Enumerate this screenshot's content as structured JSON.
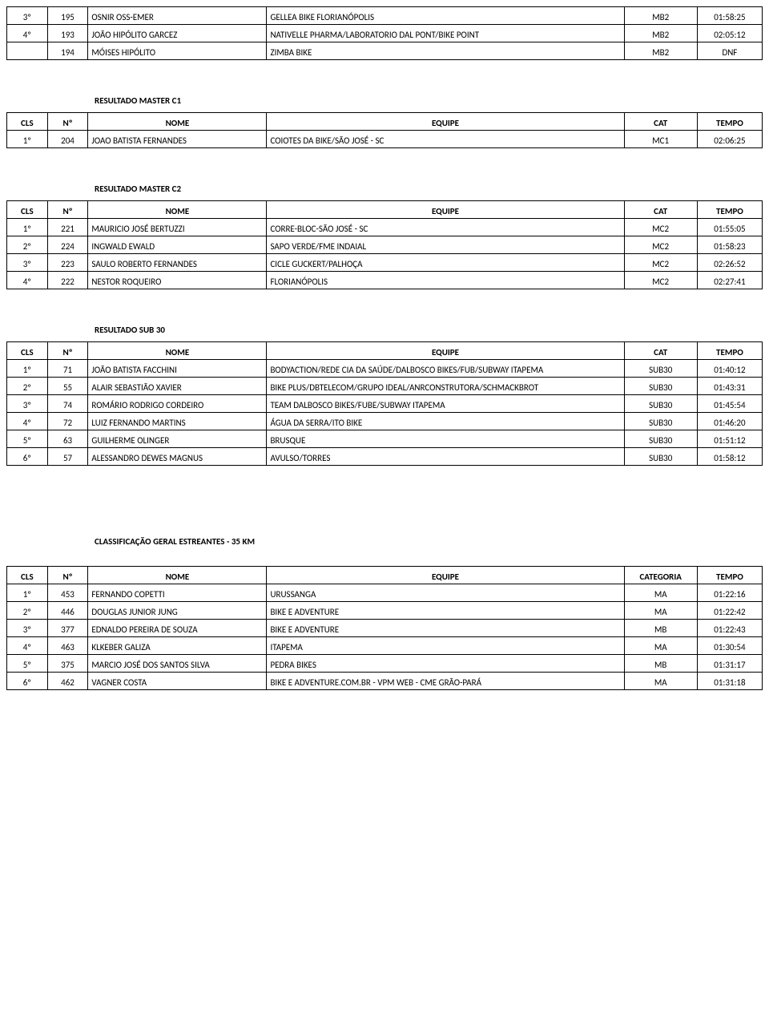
{
  "columns": {
    "cls": "CLS",
    "num": "Nº",
    "nome": "NOME",
    "equipe": "EQUIPE",
    "cat": "CAT",
    "categoria": "CATEGORIA",
    "tempo": "TEMPO"
  },
  "top_rows": [
    {
      "cls": "3º",
      "num": "195",
      "nome": "OSNIR OSS-EMER",
      "equipe": "GELLEA BIKE FLORIANÓPOLIS",
      "cat": "MB2",
      "tempo": "01:58:25"
    },
    {
      "cls": "4º",
      "num": "193",
      "nome": "JOÃO HIPÓLITO GARCEZ",
      "equipe": "NATIVELLE PHARMA/LABORATORIO DAL PONT/BIKE POINT",
      "cat": "MB2",
      "tempo": "02:05:12"
    },
    {
      "cls": "",
      "num": "194",
      "nome": "MÓISES HIPÓLITO",
      "equipe": "ZIMBA BIKE",
      "cat": "MB2",
      "tempo": "DNF"
    }
  ],
  "sections": [
    {
      "title": "RESULTADO MASTER C1",
      "cat_header": "CAT",
      "rows": [
        {
          "cls": "1º",
          "num": "204",
          "nome": "JOAO BATISTA FERNANDES",
          "equipe": "COIOTES DA BIKE/SÃO JOSÉ - SC",
          "cat": "MC1",
          "tempo": "02:06:25"
        }
      ]
    },
    {
      "title": "RESULTADO MASTER C2",
      "cat_header": "CAT",
      "rows": [
        {
          "cls": "1º",
          "num": "221",
          "nome": "MAURICIO JOSÉ BERTUZZI",
          "equipe": "CORRE-BLOC-SÃO JOSÉ - SC",
          "cat": "MC2",
          "tempo": "01:55:05"
        },
        {
          "cls": "2º",
          "num": "224",
          "nome": "INGWALD EWALD",
          "equipe": "SAPO VERDE/FME INDAIAL",
          "cat": "MC2",
          "tempo": "01:58:23"
        },
        {
          "cls": "3º",
          "num": "223",
          "nome": "SAULO ROBERTO FERNANDES",
          "equipe": "CICLE GUCKERT/PALHOÇA",
          "cat": "MC2",
          "tempo": "02:26:52"
        },
        {
          "cls": "4º",
          "num": "222",
          "nome": "NESTOR ROQUEIRO",
          "equipe": "FLORIANÓPOLIS",
          "cat": "MC2",
          "tempo": "02:27:41"
        }
      ]
    },
    {
      "title": "RESULTADO SUB 30",
      "cat_header": "CAT",
      "rows": [
        {
          "cls": "1º",
          "num": "71",
          "nome": "JOÃO BATISTA FACCHINI",
          "equipe": "BODYACTION/REDE CIA DA SAÚDE/DALBOSCO BIKES/FUB/SUBWAY ITAPEMA",
          "cat": "SUB30",
          "tempo": "01:40:12"
        },
        {
          "cls": "2º",
          "num": "55",
          "nome": "ALAIR SEBASTIÃO XAVIER",
          "equipe": "BIKE PLUS/DBTELECOM/GRUPO IDEAL/ANRCONSTRUTORA/SCHMACKBROT",
          "cat": "SUB30",
          "tempo": "01:43:31"
        },
        {
          "cls": "3º",
          "num": "74",
          "nome": "ROMÁRIO RODRIGO CORDEIRO",
          "equipe": "TEAM DALBOSCO BIKES/FUBE/SUBWAY ITAPEMA",
          "cat": "SUB30",
          "tempo": "01:45:54"
        },
        {
          "cls": "4º",
          "num": "72",
          "nome": "LUIZ FERNANDO MARTINS",
          "equipe": "ÁGUA DA SERRA/ITO BIKE",
          "cat": "SUB30",
          "tempo": "01:46:20"
        },
        {
          "cls": "5º",
          "num": "63",
          "nome": "GUILHERME OLINGER",
          "equipe": "BRUSQUE",
          "cat": "SUB30",
          "tempo": "01:51:12"
        },
        {
          "cls": "6º",
          "num": "57",
          "nome": "ALESSANDRO DEWES MAGNUS",
          "equipe": "AVULSO/TORRES",
          "cat": "SUB30",
          "tempo": "01:58:12"
        }
      ]
    }
  ],
  "estreantes": {
    "title": "CLASSIFICAÇÃO GERAL ESTREANTES - 35 KM",
    "cat_header": "CATEGORIA",
    "rows": [
      {
        "cls": "1º",
        "num": "453",
        "nome": "FERNANDO COPETTI",
        "equipe": "URUSSANGA",
        "cat": "MA",
        "tempo": "01:22:16"
      },
      {
        "cls": "2º",
        "num": "446",
        "nome": "DOUGLAS JUNIOR JUNG",
        "equipe": "BIKE E ADVENTURE",
        "cat": "MA",
        "tempo": "01:22:42"
      },
      {
        "cls": "3º",
        "num": "377",
        "nome": "EDNALDO PEREIRA DE SOUZA",
        "equipe": "BIKE E ADVENTURE",
        "cat": "MB",
        "tempo": "01:22:43"
      },
      {
        "cls": "4º",
        "num": "463",
        "nome": "KLKEBER GALIZA",
        "equipe": "ITAPEMA",
        "cat": "MA",
        "tempo": "01:30:54"
      },
      {
        "cls": "5º",
        "num": "375",
        "nome": "MARCIO JOSÉ DOS SANTOS SILVA",
        "equipe": "PEDRA BIKES",
        "cat": "MB",
        "tempo": "01:31:17"
      },
      {
        "cls": "6º",
        "num": "462",
        "nome": "VAGNER COSTA",
        "equipe": "BIKE E ADVENTURE.COM.BR - VPM WEB - CME GRÃO-PARÁ",
        "cat": "MA",
        "tempo": "01:31:18"
      }
    ]
  }
}
